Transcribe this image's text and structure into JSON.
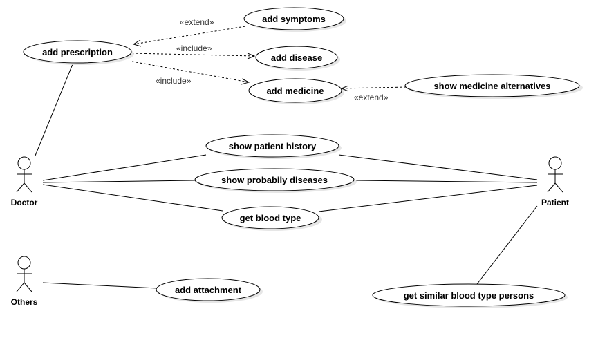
{
  "actors": {
    "doctor": "Doctor",
    "patient": "Patient",
    "others": "Others"
  },
  "use_cases": {
    "add_prescription": "add prescription",
    "add_symptoms": "add symptoms",
    "add_disease": "add disease",
    "add_medicine": "add medicine",
    "show_medicine_alternatives": "show medicine alternatives",
    "show_patient_history": "show patient history",
    "show_probably_diseases": "show probabily diseases",
    "get_blood_type": "get blood type",
    "add_attachment": "add attachment",
    "get_similar_blood_type_persons": "get similar blood type persons"
  },
  "relationships": {
    "extend_symptoms": "«extend»",
    "include_disease": "«include»",
    "include_medicine": "«include»",
    "extend_alternatives": "«extend»"
  }
}
